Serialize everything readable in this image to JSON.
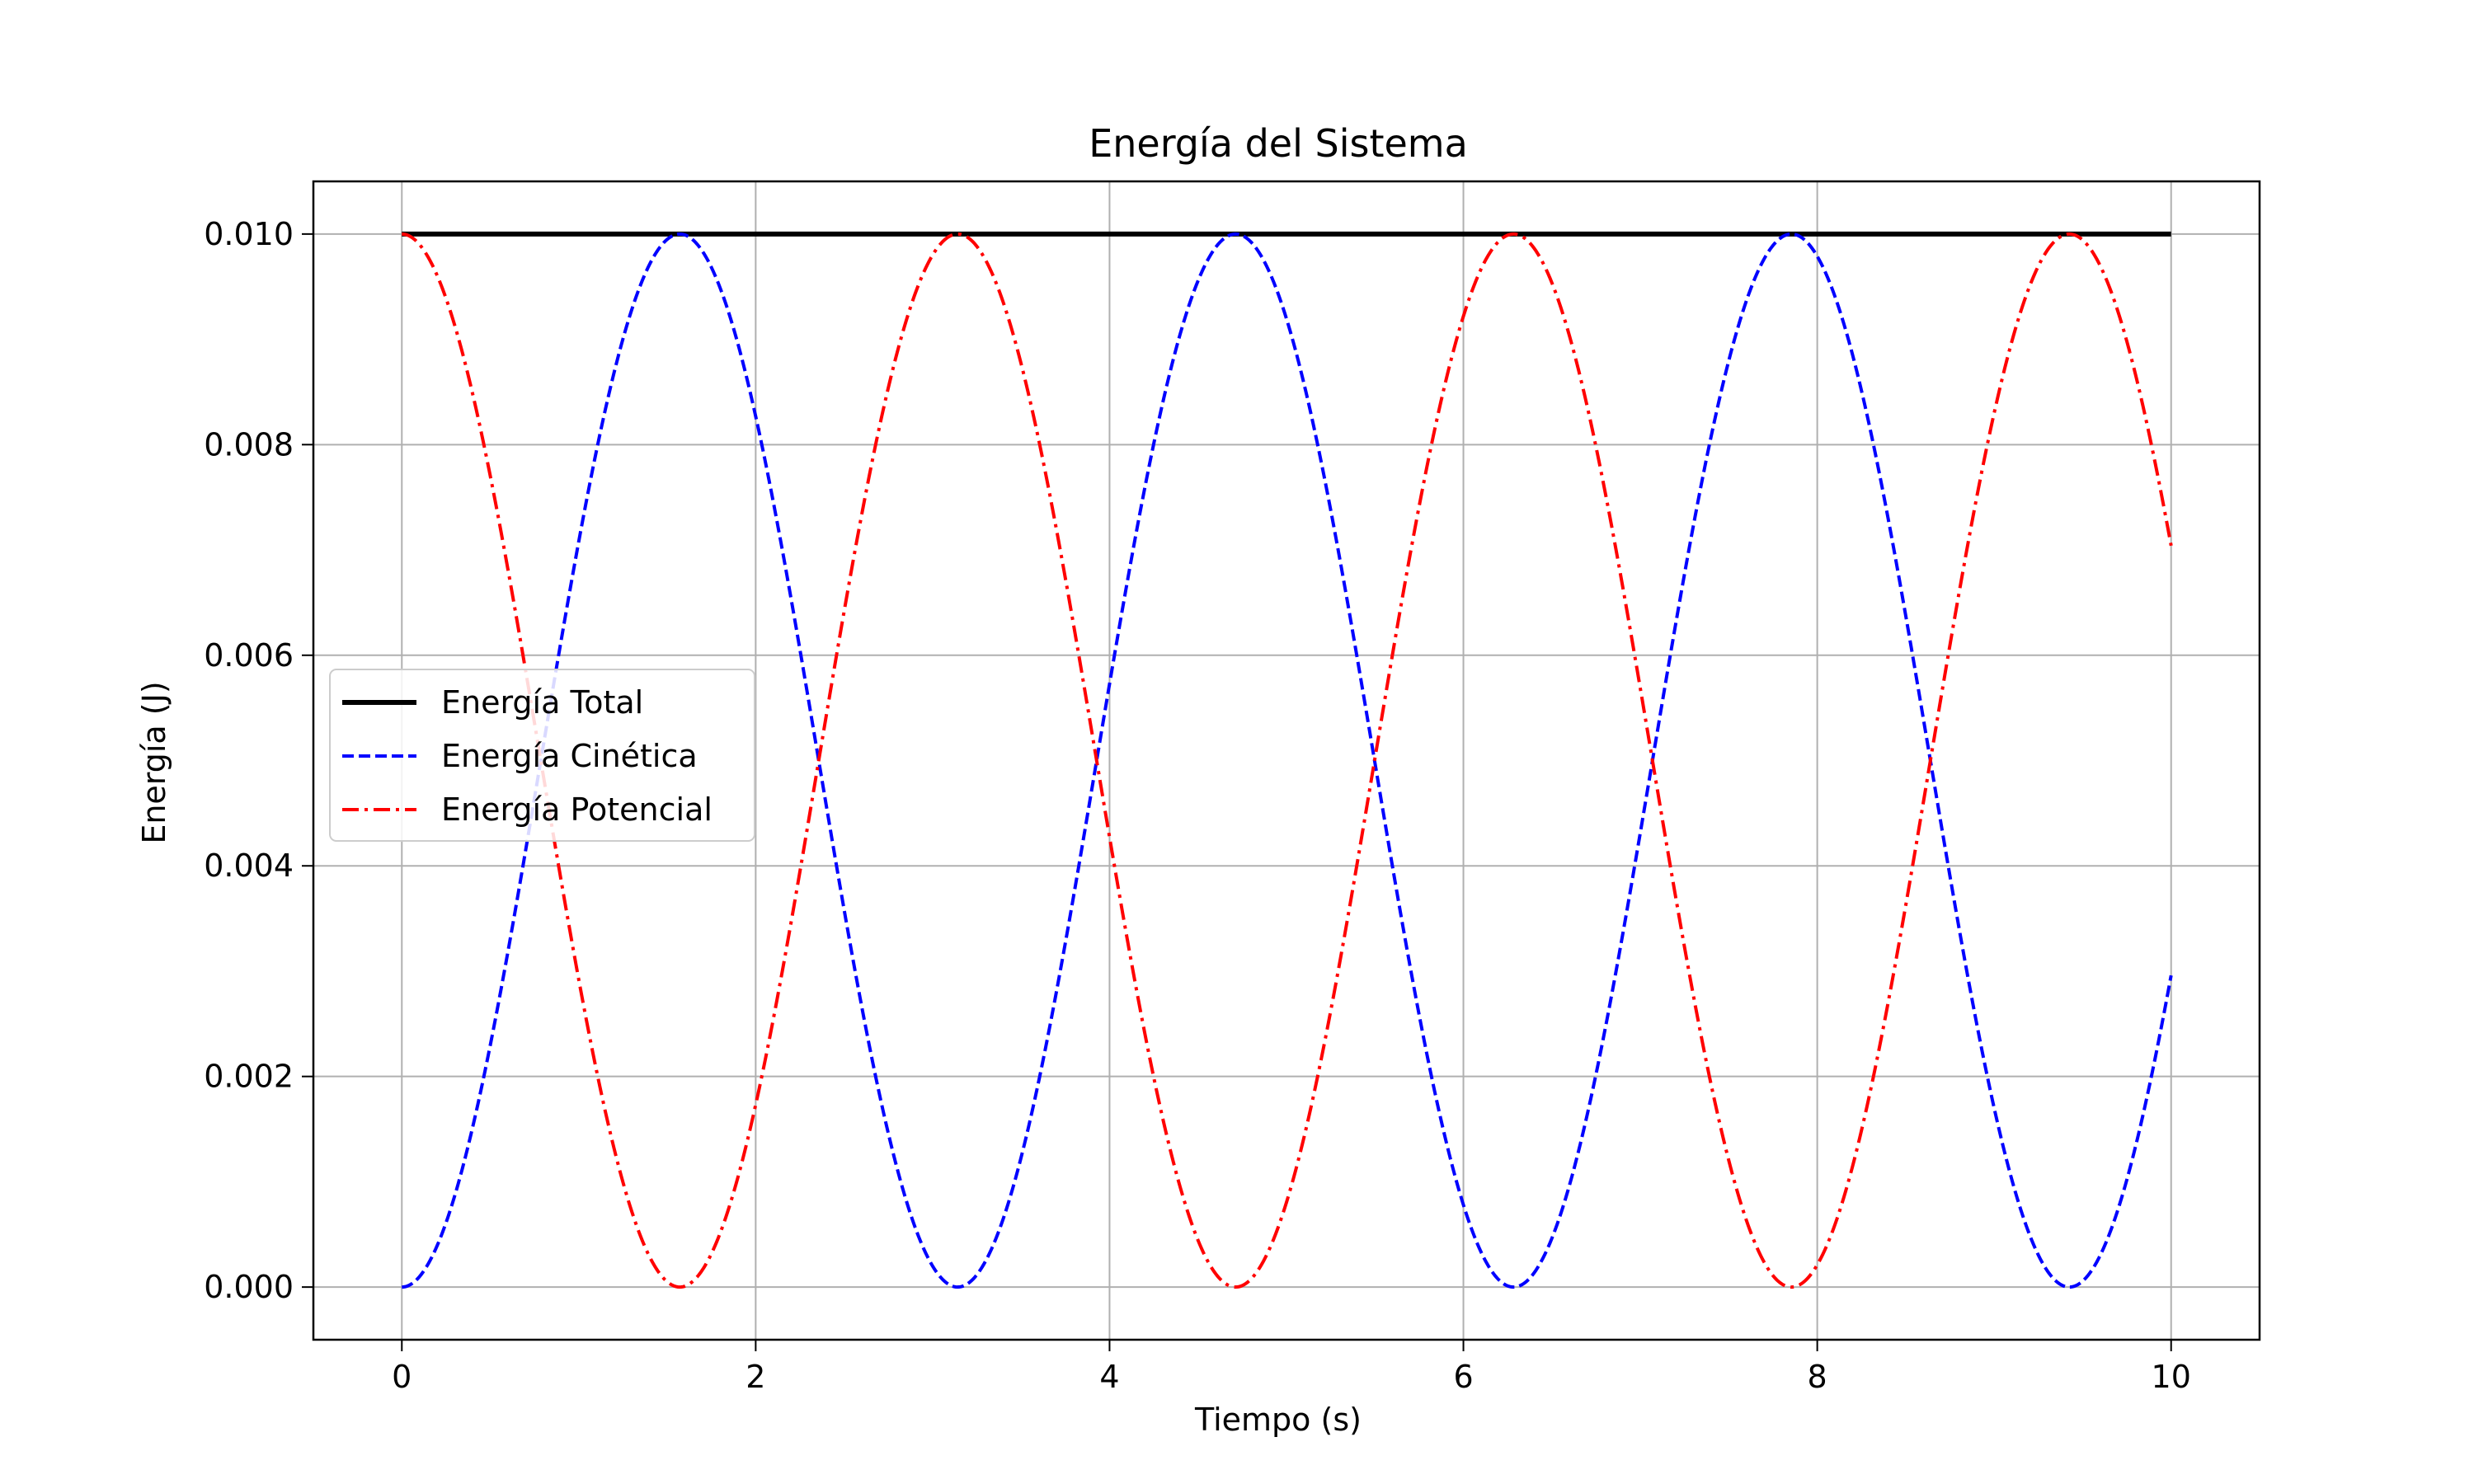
{
  "chart_data": {
    "type": "line",
    "title": "Energía del Sistema",
    "xlabel": "Tiempo (s)",
    "ylabel": "Energía (J)",
    "xlim": [
      -0.5,
      10.5
    ],
    "ylim": [
      -0.0005,
      0.0105
    ],
    "xticks": [
      0,
      2,
      4,
      6,
      8,
      10
    ],
    "xtick_labels": [
      "0",
      "2",
      "4",
      "6",
      "8",
      "10"
    ],
    "yticks": [
      0.0,
      0.002,
      0.004,
      0.006,
      0.008,
      0.01
    ],
    "ytick_labels": [
      "0.000",
      "0.002",
      "0.004",
      "0.006",
      "0.008",
      "0.010"
    ],
    "grid": true,
    "legend_position": "center-left",
    "x_range": [
      0,
      10
    ],
    "total_energy": 0.01,
    "omega": 1,
    "series": [
      {
        "name": "Energía Total",
        "function": "E",
        "color": "#000000",
        "style": "solid"
      },
      {
        "name": "Energía Cinética",
        "function": "E*sin^2(omega*t)",
        "color": "#0000ff",
        "style": "dashed"
      },
      {
        "name": "Energía Potencial",
        "function": "E*cos^2(omega*t)",
        "color": "#ff0000",
        "style": "dashdot"
      }
    ]
  }
}
